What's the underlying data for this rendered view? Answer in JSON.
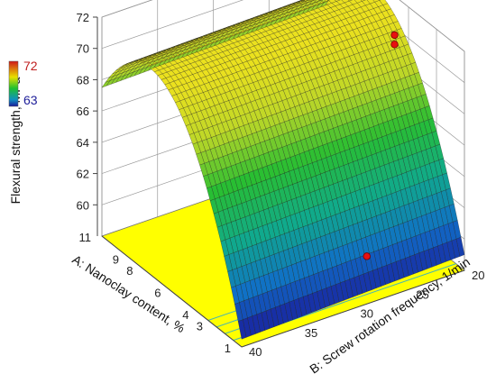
{
  "chart_data": {
    "type": "surface3d",
    "zlabel": "Flexural strength, MPa",
    "xlabel": "A: Nanoclay content, %",
    "ylabel": "B: Screw rotation frequency, 1/min",
    "z_ticks": [
      60,
      62,
      64,
      66,
      68,
      70,
      72
    ],
    "a_ticks": [
      1,
      3,
      4,
      6,
      8,
      9,
      11
    ],
    "b_ticks": [
      40,
      35,
      30,
      25,
      20
    ],
    "a_range": [
      1,
      11
    ],
    "b_range": [
      20,
      40
    ],
    "z_range": [
      58,
      72
    ],
    "surface": {
      "model": "quadratic in A, linear in B",
      "values_at": {
        "A=1,B=20": 59.0,
        "A=1,B=40": 58.5,
        "A=6,B=20": 70.8,
        "A=6,B=40": 70.5,
        "A=11,B=20": 67.8,
        "A=11,B=40": 67.5
      }
    },
    "points": [
      {
        "a": 6,
        "b": 20,
        "z": 69.5
      },
      {
        "a": 6,
        "b": 20,
        "z": 68.9
      },
      {
        "a": 4,
        "b": 25,
        "z": 58
      }
    ],
    "legend": {
      "max": "72",
      "min": "63",
      "max_color": "#d01818",
      "min_color": "#1a1a9a"
    },
    "floor_color": "#ffff00",
    "grid": true
  }
}
